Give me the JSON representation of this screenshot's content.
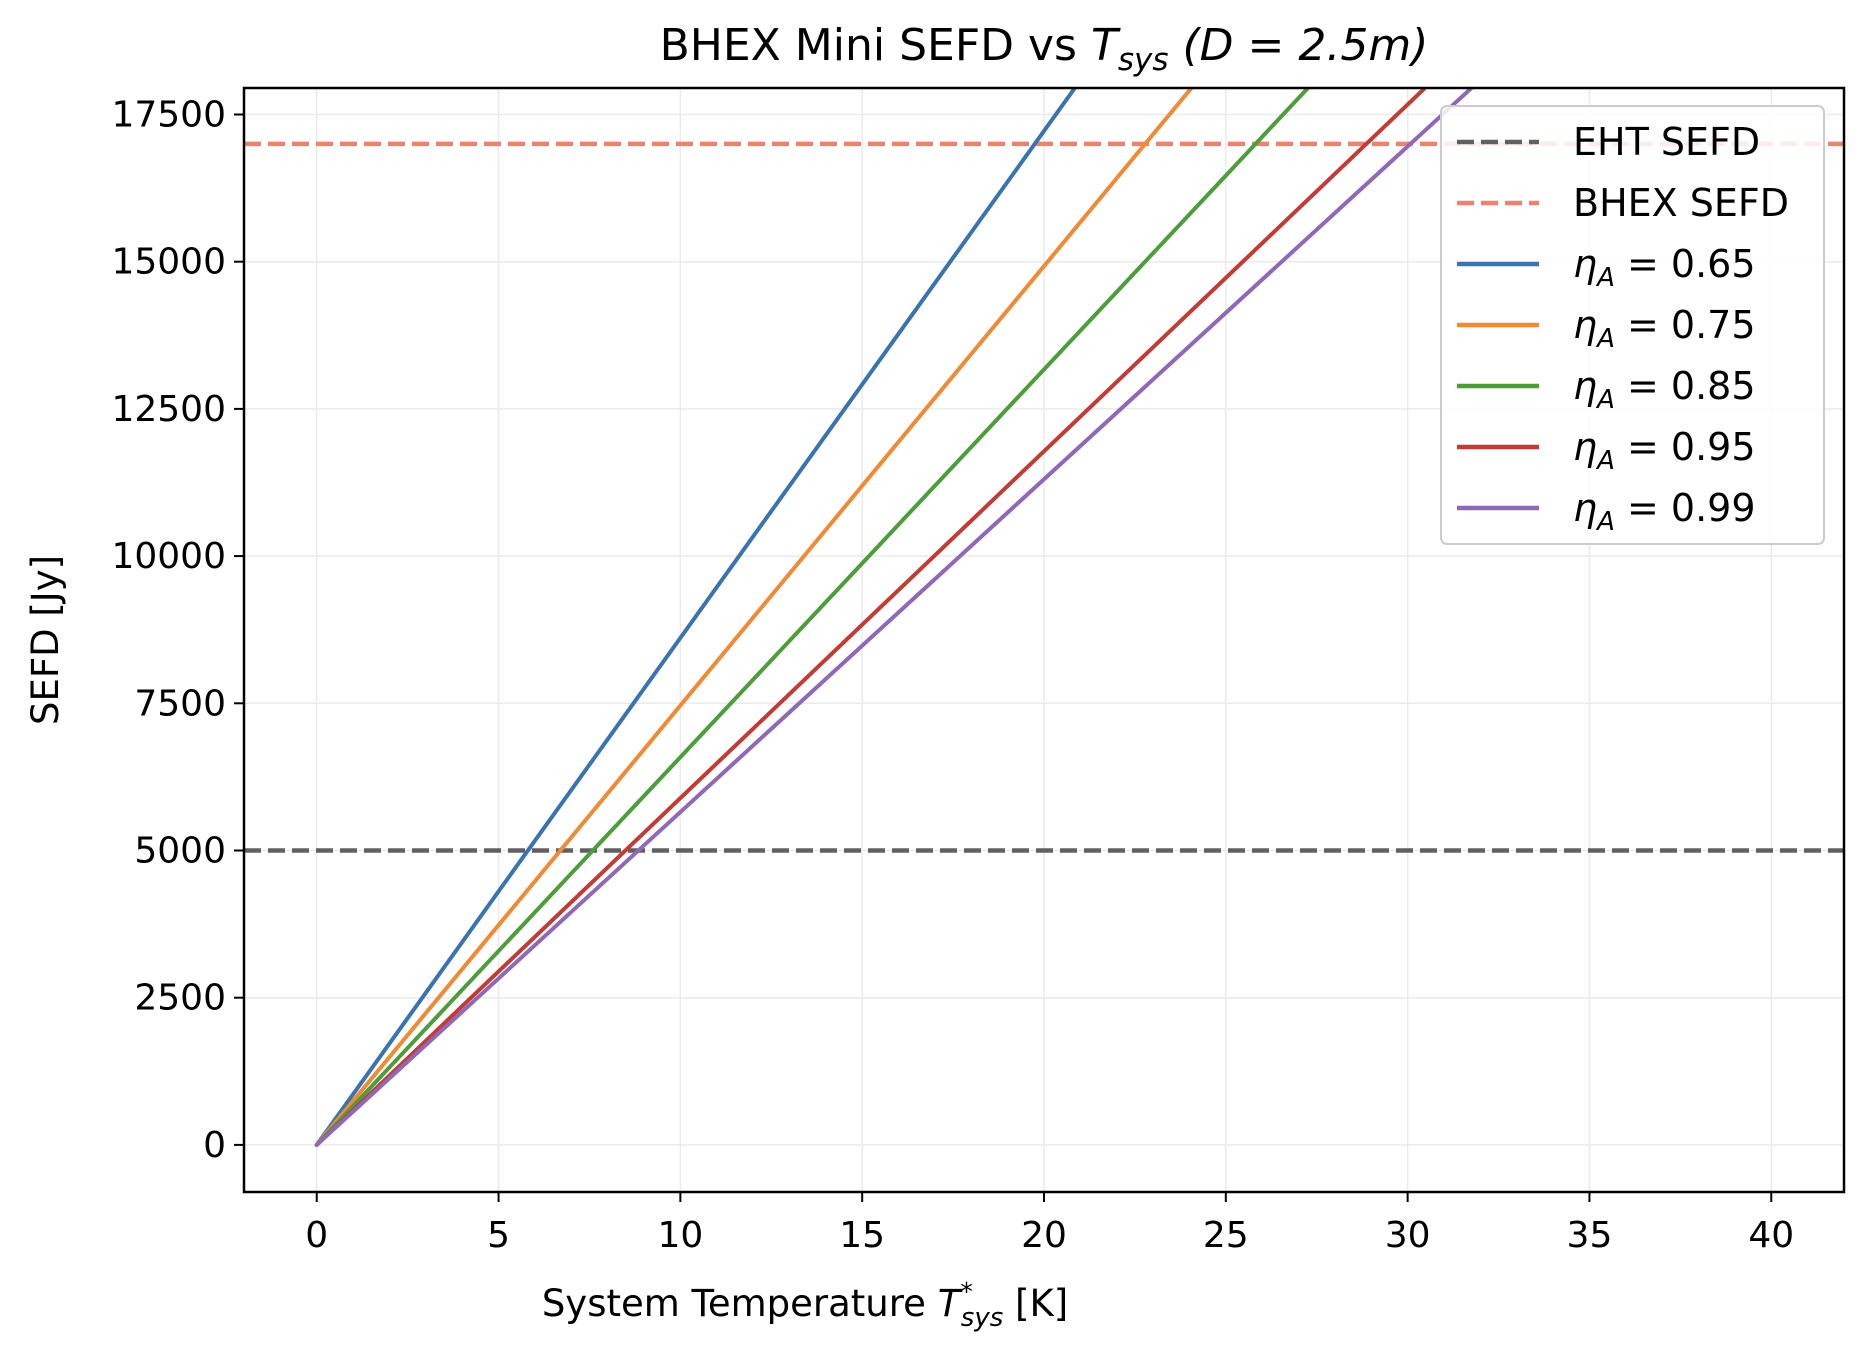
{
  "chart_data": {
    "type": "line",
    "title": {
      "main": "BHEX Mini SEFD vs ",
      "sym": "T",
      "sub": "sys",
      "paren": " (D = 2.5m)"
    },
    "xlabel": {
      "main": "System Temperature ",
      "sym": "T",
      "sup": "*",
      "sub": "sys",
      "unit": " [K]"
    },
    "ylabel": "SEFD [Jy]",
    "xlim": [
      -2,
      42
    ],
    "ylim": [
      -800,
      17950
    ],
    "x_ticks": [
      0,
      5,
      10,
      15,
      20,
      25,
      30,
      35,
      40
    ],
    "x_tick_labels": [
      "0",
      "5",
      "10",
      "15",
      "20",
      "25",
      "30",
      "35",
      "40"
    ],
    "y_ticks": [
      0,
      2500,
      5000,
      7500,
      10000,
      12500,
      15000,
      17500
    ],
    "y_tick_labels": [
      "0",
      "2500",
      "5000",
      "7500",
      "10000",
      "12500",
      "15000",
      "17500"
    ],
    "grid": true,
    "legend_position": "top-right",
    "reference_lines": [
      {
        "name": "EHT SEFD",
        "y": 5000,
        "color": "#606060",
        "style": "dashed"
      },
      {
        "name": "BHEX SEFD",
        "y": 17000,
        "color": "#f08070",
        "style": "dashed"
      }
    ],
    "series": [
      {
        "name": "η_A = 0.65",
        "label_sym": "η",
        "label_sub": "A",
        "label_val": " = 0.65",
        "color": "#3a74b0",
        "x": [
          0,
          40
        ],
        "y": [
          0,
          34440
        ]
      },
      {
        "name": "η_A = 0.75",
        "label_sym": "η",
        "label_sub": "A",
        "label_val": " = 0.75",
        "color": "#ef8a35",
        "x": [
          0,
          40
        ],
        "y": [
          0,
          29850
        ]
      },
      {
        "name": "η_A = 0.85",
        "label_sym": "η",
        "label_sub": "A",
        "label_val": " = 0.85",
        "color": "#4e9d3d",
        "x": [
          0,
          40
        ],
        "y": [
          0,
          26340
        ]
      },
      {
        "name": "η_A = 0.95",
        "label_sym": "η",
        "label_sub": "A",
        "label_val": " = 0.95",
        "color": "#c23b34",
        "x": [
          0,
          40
        ],
        "y": [
          0,
          23560
        ]
      },
      {
        "name": "η_A = 0.99",
        "label_sym": "η",
        "label_sub": "A",
        "label_val": " = 0.99",
        "color": "#9068b8",
        "x": [
          0,
          40
        ],
        "y": [
          0,
          22610
        ]
      }
    ]
  }
}
